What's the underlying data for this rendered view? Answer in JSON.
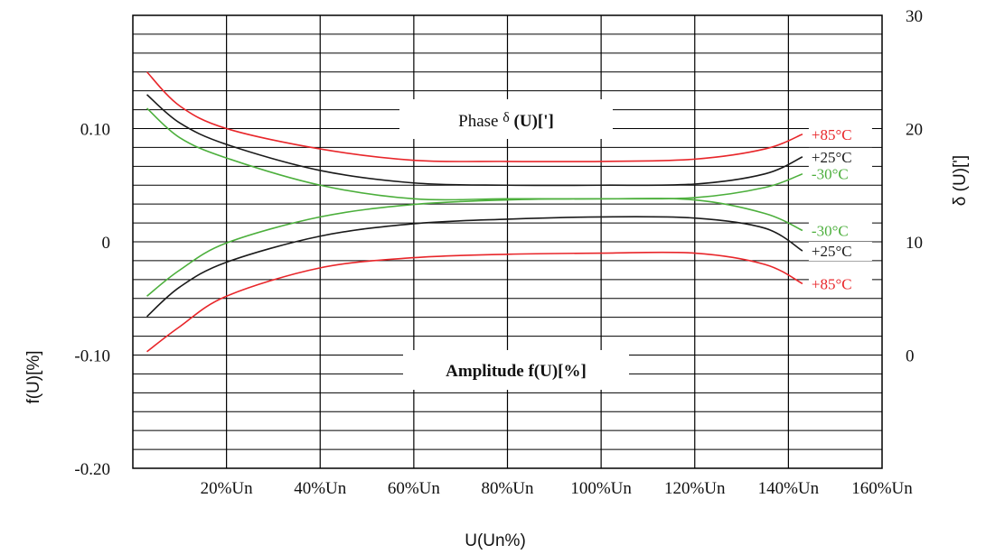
{
  "chart_data": {
    "type": "line",
    "xlabel": "U(Un%)",
    "y_left_label": "f(U)[%]",
    "y_right_label": "δ (U)[']",
    "x_tick_labels": [
      "20%Un",
      "40%Un",
      "60%Un",
      "80%Un",
      "100%Un",
      "120%Un",
      "140%Un",
      "160%Un"
    ],
    "x_ticks": [
      20,
      40,
      60,
      80,
      100,
      120,
      140,
      160
    ],
    "xlim": [
      0,
      160
    ],
    "y_left_tick_labels": [
      "0.10",
      "0",
      "-0.10",
      "-0.20"
    ],
    "y_left_ticks": [
      0.1,
      0,
      -0.1,
      -0.2
    ],
    "y_left_lim": [
      -0.2,
      0.2
    ],
    "y_right_tick_labels": [
      "30",
      "20",
      "10",
      "0"
    ],
    "y_right_ticks": [
      30,
      20,
      10,
      0
    ],
    "y_right_lim": [
      -10,
      30
    ],
    "grid": true,
    "colors": {
      "+85°C": "#e8262a",
      "+25°C": "#1a1a1a",
      "-30°C": "#4caf3c"
    },
    "groups": [
      {
        "title_prefix": "Phase ",
        "title_symbol": "δ",
        "title_suffix": " (U)[']",
        "axis": "right",
        "series": [
          {
            "name": "+85°C",
            "x": [
              3,
              10,
              20,
              40,
              60,
              80,
              100,
              120,
              135,
              143
            ],
            "y": [
              25,
              22,
              20,
              18.2,
              17.2,
              17.1,
              17.1,
              17.3,
              18.2,
              19.5
            ]
          },
          {
            "name": "+25°C",
            "x": [
              3,
              10,
              20,
              40,
              60,
              80,
              100,
              120,
              135,
              143
            ],
            "y": [
              23,
              20.5,
              18.6,
              16.3,
              15.2,
              15.0,
              15.0,
              15.1,
              16.0,
              17.5
            ]
          },
          {
            "name": "-30°C",
            "x": [
              3,
              10,
              20,
              40,
              60,
              80,
              100,
              120,
              135,
              143
            ],
            "y": [
              21.8,
              19.2,
              17.4,
              15.0,
              13.8,
              13.8,
              13.8,
              13.9,
              14.8,
              16.0
            ]
          }
        ]
      },
      {
        "title": "Amplitude f(U)[%]",
        "axis": "left",
        "series": [
          {
            "name": "-30°C",
            "x": [
              3,
              10,
              20,
              40,
              60,
              80,
              100,
              120,
              135,
              143
            ],
            "y": [
              -0.048,
              -0.025,
              -0.001,
              0.022,
              0.033,
              0.037,
              0.038,
              0.037,
              0.025,
              0.01
            ]
          },
          {
            "name": "+25°C",
            "x": [
              3,
              10,
              20,
              40,
              60,
              80,
              100,
              120,
              135,
              143
            ],
            "y": [
              -0.066,
              -0.04,
              -0.018,
              0.005,
              0.016,
              0.02,
              0.022,
              0.021,
              0.012,
              -0.008
            ]
          },
          {
            "name": "+85°C",
            "x": [
              3,
              10,
              20,
              40,
              60,
              80,
              100,
              120,
              135,
              143
            ],
            "y": [
              -0.097,
              -0.075,
              -0.048,
              -0.023,
              -0.014,
              -0.011,
              -0.01,
              -0.01,
              -0.02,
              -0.037
            ]
          }
        ]
      }
    ]
  }
}
